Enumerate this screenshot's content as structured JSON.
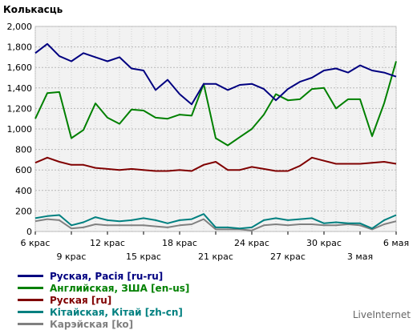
{
  "chart_data": {
    "type": "line",
    "title": "Колькасць",
    "ylim": [
      0,
      2000
    ],
    "y_ticks": [
      0,
      200,
      400,
      600,
      800,
      1000,
      1200,
      1400,
      1600,
      1800,
      2000
    ],
    "y_tick_labels": [
      "0",
      "200",
      "400",
      "600",
      "800",
      "1,000",
      "1,200",
      "1,400",
      "1,600",
      "1,800",
      "2,000"
    ],
    "grid": true,
    "legend_position": "bottom-left",
    "x_tick_labels_row1": [
      {
        "index": 0,
        "label": "6 крас"
      },
      {
        "index": 6,
        "label": "12 крас"
      },
      {
        "index": 12,
        "label": "18 крас"
      },
      {
        "index": 18,
        "label": "24 крас"
      },
      {
        "index": 24,
        "label": "30 крас"
      },
      {
        "index": 30,
        "label": "6 мая"
      }
    ],
    "x_tick_labels_row2": [
      {
        "index": 3,
        "label": "9 крас"
      },
      {
        "index": 9,
        "label": "15 крас"
      },
      {
        "index": 15,
        "label": "21 крас"
      },
      {
        "index": 21,
        "label": "27 крас"
      },
      {
        "index": 27,
        "label": "3 мая"
      }
    ],
    "series": [
      {
        "name": "Руская, Расія [ru-ru]",
        "color": "#000080",
        "values": [
          1740,
          1830,
          1710,
          1660,
          1740,
          1700,
          1660,
          1700,
          1590,
          1570,
          1380,
          1480,
          1340,
          1240,
          1440,
          1440,
          1380,
          1430,
          1440,
          1390,
          1280,
          1390,
          1460,
          1500,
          1570,
          1590,
          1550,
          1620,
          1570,
          1550,
          1510
        ]
      },
      {
        "name": "Английская, ЗША [en-us]",
        "color": "#008000",
        "values": [
          1100,
          1350,
          1360,
          910,
          990,
          1250,
          1110,
          1050,
          1190,
          1180,
          1110,
          1100,
          1140,
          1130,
          1440,
          910,
          840,
          920,
          1000,
          1140,
          1340,
          1280,
          1290,
          1390,
          1400,
          1200,
          1290,
          1290,
          930,
          1250,
          1660
        ]
      },
      {
        "name": "Руская [ru]",
        "color": "#800000",
        "values": [
          670,
          720,
          680,
          650,
          650,
          620,
          610,
          600,
          610,
          600,
          590,
          590,
          600,
          590,
          650,
          680,
          600,
          600,
          630,
          610,
          590,
          590,
          640,
          720,
          690,
          660,
          660,
          660,
          670,
          680,
          660
        ]
      },
      {
        "name": "Кітайская, Кітай [zh-cn]",
        "color": "#008080",
        "values": [
          130,
          150,
          160,
          60,
          90,
          140,
          110,
          100,
          110,
          130,
          110,
          80,
          110,
          120,
          170,
          40,
          40,
          30,
          40,
          110,
          130,
          110,
          120,
          130,
          80,
          90,
          80,
          80,
          30,
          110,
          160
        ]
      },
      {
        "name": "Карэйская [ko]",
        "color": "#808080",
        "values": [
          100,
          120,
          110,
          30,
          40,
          70,
          60,
          60,
          60,
          60,
          50,
          40,
          60,
          70,
          120,
          20,
          20,
          20,
          10,
          60,
          70,
          60,
          70,
          70,
          60,
          60,
          70,
          60,
          20,
          70,
          100
        ]
      }
    ]
  },
  "brand": "LiveInternet"
}
